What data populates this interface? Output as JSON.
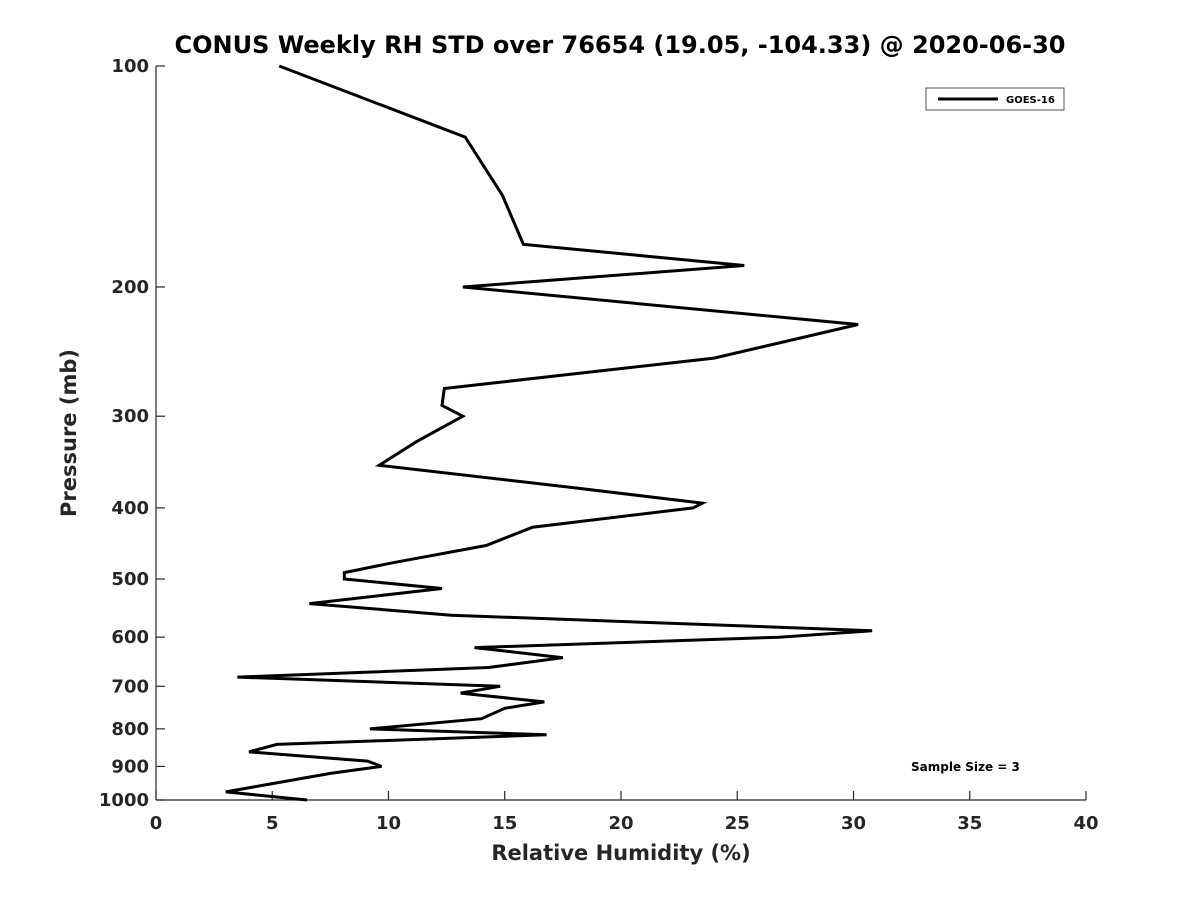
{
  "chart_data": {
    "type": "line",
    "title": "CONUS Weekly RH STD over 76654 (19.05, -104.33) @ 2020-06-30",
    "xlabel": "Relative Humidity (%)",
    "ylabel": "Pressure (mb)",
    "xlim": [
      0,
      40
    ],
    "ylim": [
      100,
      1000
    ],
    "yscale": "log",
    "y_reversed": true,
    "x_ticks": [
      0,
      5,
      10,
      15,
      20,
      25,
      30,
      35,
      40
    ],
    "x_tick_labels": [
      "0",
      "5",
      "10",
      "15",
      "20",
      "25",
      "30",
      "35",
      "40"
    ],
    "y_ticks": [
      100,
      200,
      300,
      400,
      500,
      600,
      700,
      800,
      900,
      1000
    ],
    "y_tick_labels": [
      "100",
      "200",
      "300",
      "400",
      "500",
      "600",
      "700",
      "800",
      "900",
      "1000"
    ],
    "grid": false,
    "legend_position": "top-right",
    "annotation": "Sample Size = 3",
    "series": [
      {
        "name": "GOES-16",
        "color": "#000000",
        "points": [
          [
            5.3,
            100
          ],
          [
            13.3,
            125
          ],
          [
            14.9,
            150
          ],
          [
            15.8,
            175
          ],
          [
            25.3,
            187
          ],
          [
            13.2,
            200
          ],
          [
            30.2,
            225
          ],
          [
            24.0,
            250
          ],
          [
            12.4,
            275
          ],
          [
            12.3,
            290
          ],
          [
            13.2,
            300
          ],
          [
            11.2,
            325
          ],
          [
            9.6,
            350
          ],
          [
            17.8,
            375
          ],
          [
            23.5,
            394
          ],
          [
            23.1,
            400
          ],
          [
            16.2,
            425
          ],
          [
            14.2,
            450
          ],
          [
            10.2,
            475
          ],
          [
            8.1,
            490
          ],
          [
            8.1,
            500
          ],
          [
            12.3,
            515
          ],
          [
            6.6,
            540
          ],
          [
            12.7,
            560
          ],
          [
            30.8,
            588
          ],
          [
            26.8,
            600
          ],
          [
            13.7,
            620
          ],
          [
            17.5,
            640
          ],
          [
            14.3,
            660
          ],
          [
            3.5,
            680
          ],
          [
            14.8,
            700
          ],
          [
            13.1,
            715
          ],
          [
            16.7,
            735
          ],
          [
            15.0,
            750
          ],
          [
            14.0,
            775
          ],
          [
            9.2,
            800
          ],
          [
            16.8,
            815
          ],
          [
            5.2,
            840
          ],
          [
            4.0,
            860
          ],
          [
            9.1,
            885
          ],
          [
            9.7,
            900
          ],
          [
            7.5,
            920
          ],
          [
            5.0,
            950
          ],
          [
            3.0,
            975
          ],
          [
            6.5,
            1000
          ]
        ]
      }
    ]
  }
}
